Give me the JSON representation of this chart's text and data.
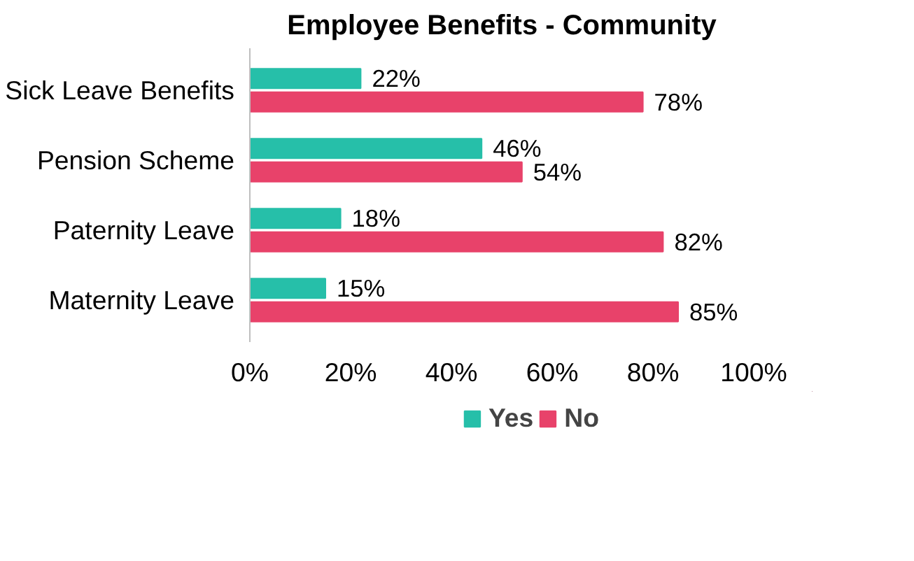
{
  "chart_data": {
    "type": "bar",
    "orientation": "horizontal",
    "title": "Employee Benefits - Community",
    "categories": [
      "Sick Leave Benefits",
      "Pension Scheme",
      "Paternity Leave",
      "Maternity Leave"
    ],
    "series": [
      {
        "name": "Yes",
        "color": "#26bfa9",
        "values": [
          22,
          46,
          18,
          15
        ],
        "value_labels": [
          "22%",
          "46%",
          "18%",
          "15%"
        ]
      },
      {
        "name": "No",
        "color": "#e8426a",
        "values": [
          78,
          54,
          82,
          85
        ],
        "value_labels": [
          "78%",
          "54%",
          "82%",
          "85%"
        ]
      }
    ],
    "xlim": [
      0,
      100
    ],
    "xticks": [
      {
        "value": 0,
        "label": "0%"
      },
      {
        "value": 20,
        "label": "20%"
      },
      {
        "value": 40,
        "label": "40%"
      },
      {
        "value": 60,
        "label": "60%"
      },
      {
        "value": 80,
        "label": "80%"
      },
      {
        "value": 100,
        "label": "100%"
      }
    ],
    "grid": false,
    "legend": "bottom"
  }
}
